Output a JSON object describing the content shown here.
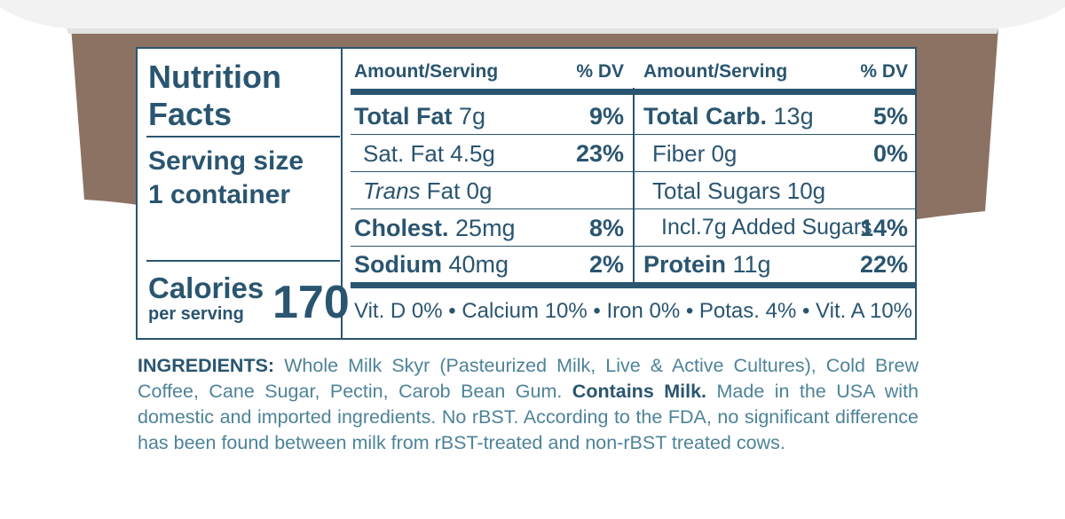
{
  "colors": {
    "text": "#2a5570",
    "ingredients_text": "#4d8398",
    "band": "#8c7263",
    "cup": "#f2f2f2"
  },
  "nutrition": {
    "title_line1": "Nutrition",
    "title_line2": "Facts",
    "serving_line1": "Serving size",
    "serving_line2": "1 container",
    "calories_label": "Calories",
    "calories_sub": "per serving",
    "calories_value": "170",
    "left_header": {
      "amount": "Amount/Serving",
      "dv": "% DV"
    },
    "right_header": {
      "amount": "Amount/Serving",
      "dv": "% DV"
    },
    "left_rows": [
      {
        "name": "Total Fat",
        "amount": "7g",
        "dv": "9%"
      },
      {
        "name": "Sat. Fat 4.5g",
        "amount": "",
        "dv": "23%"
      },
      {
        "name_italic": "Trans",
        "name": "Fat 0g",
        "dv": ""
      },
      {
        "name": "Cholest.",
        "amount": "25mg",
        "dv": "8%"
      },
      {
        "name": "Sodium",
        "amount": "40mg",
        "dv": "2%"
      }
    ],
    "right_rows": [
      {
        "name": "Total Carb.",
        "amount": "13g",
        "dv": "5%"
      },
      {
        "name": "Fiber 0g",
        "amount": "",
        "dv": "0%"
      },
      {
        "name": "Total Sugars 10g",
        "amount": "",
        "dv": ""
      },
      {
        "name": "Incl.7g Added Sugars",
        "amount": "",
        "dv": "14%"
      },
      {
        "name": "Protein",
        "amount": "11g",
        "dv": "22%"
      }
    ],
    "vitamins": "Vit. D 0% • Calcium 10% • Iron 0% • Potas. 4% • Vit. A 10%"
  },
  "ingredients": {
    "label": "INGREDIENTS:",
    "text1": " Whole Milk Skyr (Pasteurized Milk, Live & Active Cultures), Cold Brew Coffee, Cane Sugar, Pectin, Carob Bean Gum. ",
    "contains": "Contains Milk.",
    "text2": " Made in the USA with domestic and imported ingredients. No rBST. According to the FDA, no significant difference has been found between milk from rBST-treated and non-rBST treated cows."
  }
}
